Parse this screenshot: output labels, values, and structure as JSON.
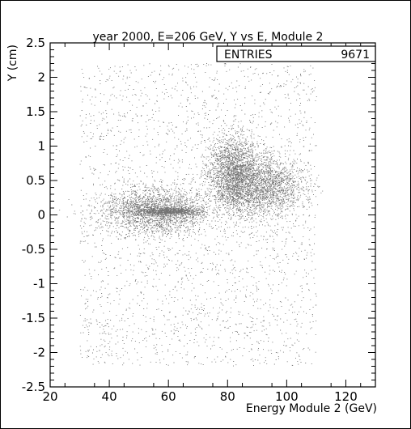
{
  "chart_data": {
    "type": "scatter",
    "title": "year 2000, E=206 GeV, Y vs E, Module 2",
    "xlabel": "Energy Module 2 (GeV)",
    "ylabel": "Y (cm)",
    "xlim": [
      20,
      130
    ],
    "ylim": [
      -2.5,
      2.5
    ],
    "x_ticks": [
      20,
      40,
      60,
      80,
      100,
      120
    ],
    "x_tick_labels": [
      "20",
      "40",
      "60",
      "80",
      "100",
      "120"
    ],
    "y_ticks": [
      -2.5,
      -2,
      -1.5,
      -1,
      -0.5,
      0,
      0.5,
      1,
      1.5,
      2,
      2.5
    ],
    "y_tick_labels": [
      "-2.5",
      "-2",
      "-1.5",
      "-1",
      "-0.5",
      "0",
      "0.5",
      "1",
      "1.5",
      "2",
      "2.5"
    ],
    "grid": false,
    "stats_box": {
      "label": "ENTRIES",
      "value": "9671"
    },
    "entries": 9671,
    "marker_color": "#000000",
    "clusters": [
      {
        "name": "band",
        "x_center": 60,
        "y_center": 0.05,
        "x_sigma": 5.5,
        "y_sigma": 0.03,
        "weight": 0.1
      },
      {
        "name": "low-energy-spread",
        "x_center": 55,
        "y_center": 0.05,
        "x_sigma": 9,
        "y_sigma": 0.18,
        "weight": 0.22
      },
      {
        "name": "peak-upper",
        "x_center": 82,
        "y_center": 0.6,
        "x_sigma": 4.5,
        "y_sigma": 0.28,
        "weight": 0.22
      },
      {
        "name": "peak-right",
        "x_center": 92,
        "y_center": 0.4,
        "x_sigma": 7,
        "y_sigma": 0.22,
        "weight": 0.2
      },
      {
        "name": "background",
        "x_range": [
          30,
          110
        ],
        "y_range": [
          -2.2,
          2.2
        ],
        "weight": 0.26
      }
    ]
  }
}
